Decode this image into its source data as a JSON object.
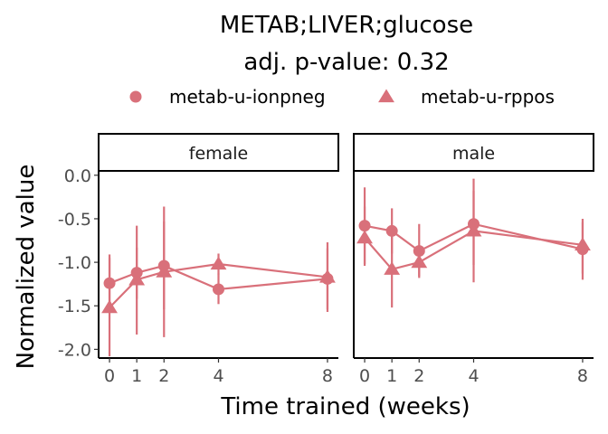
{
  "chart_data": {
    "type": "line",
    "title": "METAB;LIVER;glucose",
    "subtitle": "adj. p-value: 0.32",
    "xlabel": "Time trained (weeks)",
    "ylabel": "Normalized value",
    "x_ticks": [
      0,
      1,
      2,
      4,
      8
    ],
    "y_ticks": [
      0.0,
      -0.5,
      -1.0,
      -1.5,
      -2.0
    ],
    "y_tick_labels": [
      "0.0",
      "-0.5",
      "-1.0",
      "-1.5",
      "-2.0"
    ],
    "xlim": [
      -0.4,
      8.4
    ],
    "ylim": [
      -2.1,
      0.05
    ],
    "legend_position": "top",
    "color": "#d9707a",
    "legend": [
      {
        "name": "metab-u-ionpneg",
        "shape": "circle"
      },
      {
        "name": "metab-u-rppos",
        "shape": "triangle"
      }
    ],
    "facets": [
      {
        "label": "female",
        "series": [
          {
            "name": "metab-u-ionpneg",
            "shape": "circle",
            "points": [
              {
                "x": 0,
                "y": -1.24,
                "lo": -1.57,
                "hi": -0.91
              },
              {
                "x": 1,
                "y": -1.12,
                "lo": -1.42,
                "hi": -0.83
              },
              {
                "x": 2,
                "y": -1.04,
                "lo": -1.54,
                "hi": -0.53
              },
              {
                "x": 4,
                "y": -1.31,
                "lo": -1.48,
                "hi": -1.13
              },
              {
                "x": 8,
                "y": -1.19,
                "lo": -1.54,
                "hi": -0.84
              }
            ]
          },
          {
            "name": "metab-u-rppos",
            "shape": "triangle",
            "points": [
              {
                "x": 0,
                "y": -1.52,
                "lo": -2.08,
                "hi": -0.95
              },
              {
                "x": 1,
                "y": -1.2,
                "lo": -1.83,
                "hi": -0.58
              },
              {
                "x": 2,
                "y": -1.11,
                "lo": -1.86,
                "hi": -0.36
              },
              {
                "x": 4,
                "y": -1.02,
                "lo": -1.14,
                "hi": -0.9
              },
              {
                "x": 8,
                "y": -1.17,
                "lo": -1.57,
                "hi": -0.77
              }
            ]
          }
        ]
      },
      {
        "label": "male",
        "series": [
          {
            "name": "metab-u-ionpneg",
            "shape": "circle",
            "points": [
              {
                "x": 0,
                "y": -0.58,
                "lo": -1.02,
                "hi": -0.14
              },
              {
                "x": 1,
                "y": -0.64,
                "lo": -0.9,
                "hi": -0.38
              },
              {
                "x": 2,
                "y": -0.87,
                "lo": -1.18,
                "hi": -0.56
              },
              {
                "x": 4,
                "y": -0.56,
                "lo": -1.23,
                "hi": -0.04
              },
              {
                "x": 8,
                "y": -0.85,
                "lo": -1.2,
                "hi": -0.5
              }
            ]
          },
          {
            "name": "metab-u-rppos",
            "shape": "triangle",
            "points": [
              {
                "x": 0,
                "y": -0.72,
                "lo": -1.04,
                "hi": -0.36
              },
              {
                "x": 1,
                "y": -1.08,
                "lo": -1.52,
                "hi": -0.62
              },
              {
                "x": 2,
                "y": -1.0,
                "lo": -1.16,
                "hi": -0.83
              },
              {
                "x": 4,
                "y": -0.64,
                "lo": -1.03,
                "hi": -0.18
              },
              {
                "x": 8,
                "y": -0.8,
                "lo": -1.13,
                "hi": -0.54
              }
            ]
          }
        ]
      }
    ]
  }
}
